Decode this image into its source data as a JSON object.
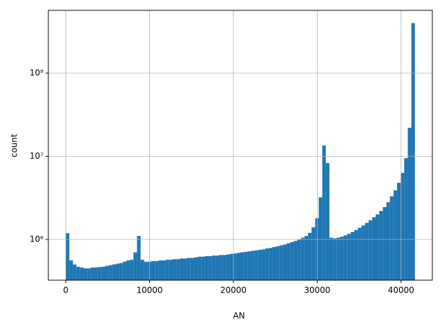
{
  "chart_data": {
    "type": "histogram",
    "xlabel": "AN",
    "ylabel": "count",
    "color": "#1f77b4",
    "log_y": true,
    "grid": true,
    "bins": [
      0,
      425,
      850,
      1275,
      1700,
      2125,
      2550,
      2975,
      3400,
      3825,
      4250,
      4675,
      5100,
      5525,
      5950,
      6375,
      6800,
      7225,
      7650,
      8075,
      8500,
      8925,
      9350,
      9775,
      10200,
      10625,
      11050,
      11475,
      11900,
      12325,
      12750,
      13175,
      13600,
      14025,
      14450,
      14875,
      15300,
      15725,
      16150,
      16575,
      17000,
      17425,
      17850,
      18275,
      18700,
      19125,
      19550,
      19975,
      20400,
      20825,
      21250,
      21675,
      22100,
      22525,
      22950,
      23375,
      23800,
      24225,
      24650,
      25075,
      25500,
      25925,
      26350,
      26775,
      27200,
      27625,
      28050,
      28475,
      28900,
      29325,
      29750,
      30175,
      30600,
      31025,
      31450,
      31875,
      32300,
      32725,
      33150,
      33575,
      34000,
      34425,
      34850,
      35275,
      35700,
      36125,
      36550,
      36975,
      37400,
      37825,
      38250,
      38675,
      39100,
      39525,
      39950,
      40375,
      40800,
      41225,
      41650
    ],
    "counts": [
      1190000,
      560000,
      500000,
      470000,
      460000,
      450000,
      450000,
      460000,
      460000,
      465000,
      470000,
      480000,
      490000,
      500000,
      510000,
      520000,
      540000,
      560000,
      570000,
      700000,
      1100000,
      570000,
      540000,
      540000,
      550000,
      550000,
      560000,
      560000,
      570000,
      570000,
      580000,
      580000,
      590000,
      590000,
      600000,
      600000,
      610000,
      620000,
      620000,
      630000,
      630000,
      640000,
      640000,
      650000,
      650000,
      660000,
      670000,
      680000,
      690000,
      700000,
      710000,
      720000,
      730000,
      740000,
      750000,
      760000,
      780000,
      790000,
      810000,
      830000,
      850000,
      870000,
      900000,
      930000,
      960000,
      1000000,
      1050000,
      1100000,
      1200000,
      1400000,
      1800000,
      3200000,
      13500000,
      8300000,
      1050000,
      1030000,
      1050000,
      1080000,
      1120000,
      1170000,
      1230000,
      1300000,
      1380000,
      1470000,
      1580000,
      1700000,
      1850000,
      2000000,
      2200000,
      2450000,
      2800000,
      3300000,
      3900000,
      4800000,
      6300000,
      9500000,
      22000000,
      400000000
    ],
    "xlim": [
      -2080,
      43730
    ],
    "xticks": [
      0,
      10000,
      20000,
      30000,
      40000
    ],
    "ylim": [
      324000,
      569000000
    ],
    "yticks": [
      {
        "value": 1000000,
        "label": "10⁶"
      },
      {
        "value": 10000000,
        "label": "10⁷"
      },
      {
        "value": 100000000,
        "label": "10⁸"
      }
    ]
  }
}
